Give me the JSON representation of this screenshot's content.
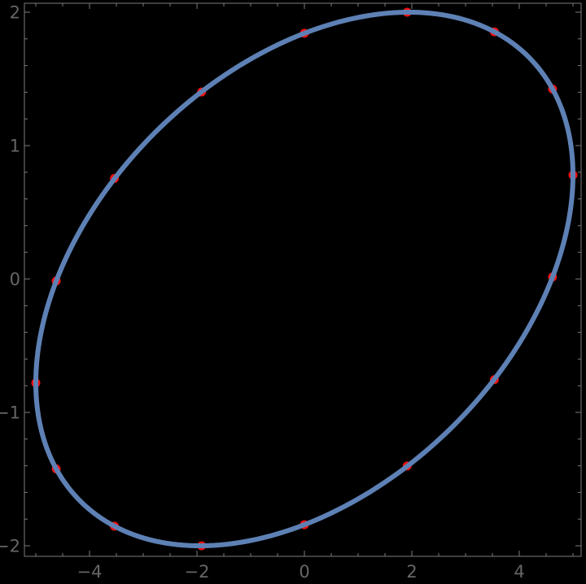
{
  "chart_data": {
    "type": "scatter",
    "title": "",
    "xlabel": "",
    "ylabel": "",
    "xlim": [
      -5.21,
      5.15
    ],
    "ylim": [
      -2.07,
      2.08
    ],
    "grid": false,
    "legend": false,
    "framed": true,
    "background_color": "#000000",
    "frame_color": "#7b7b7b",
    "tick_color": "#7b7b7b",
    "tick_label_color": "#666666",
    "x_ticks": {
      "major": [
        -4,
        -2,
        0,
        2,
        4
      ],
      "major_labels": [
        "−4",
        "−2",
        "0",
        "2",
        "4"
      ],
      "minor_step": 0.5,
      "minor_range": [
        -5,
        5
      ]
    },
    "y_ticks": {
      "major": [
        -2,
        -1,
        0,
        1,
        2
      ],
      "major_labels": [
        "−2",
        "−1",
        "0",
        "1",
        "2"
      ],
      "minor_step": 0.2,
      "minor_range": [
        -2,
        2
      ]
    },
    "curve": {
      "kind": "parametric-ellipse",
      "x_of_t": "5*cos(t)",
      "y_of_t": "2*sin(t+0.4)",
      "a": 5,
      "b": 2,
      "phase": 0.4,
      "t_range": [
        0,
        6.2832
      ],
      "color": "#5e81b5",
      "stroke_width": 6
    },
    "points": {
      "description": "16 sample points at t = k*pi/8, k = 0..15, drawn beneath the curve",
      "color": "#ee1111",
      "radius": 5.5,
      "xy": [
        [
          5.0,
          0.779
        ],
        [
          4.619,
          1.424
        ],
        [
          3.536,
          1.853
        ],
        [
          1.913,
          2.0
        ],
        [
          0.0,
          1.842
        ],
        [
          -1.913,
          1.402
        ],
        [
          -3.536,
          0.754
        ],
        [
          -4.619,
          -0.015
        ],
        [
          -5.0,
          -0.779
        ],
        [
          -4.619,
          -1.424
        ],
        [
          -3.536,
          -1.853
        ],
        [
          -1.913,
          -2.0
        ],
        [
          0.0,
          -1.842
        ],
        [
          1.913,
          -1.402
        ],
        [
          3.536,
          -0.754
        ],
        [
          4.619,
          0.015
        ]
      ]
    }
  }
}
